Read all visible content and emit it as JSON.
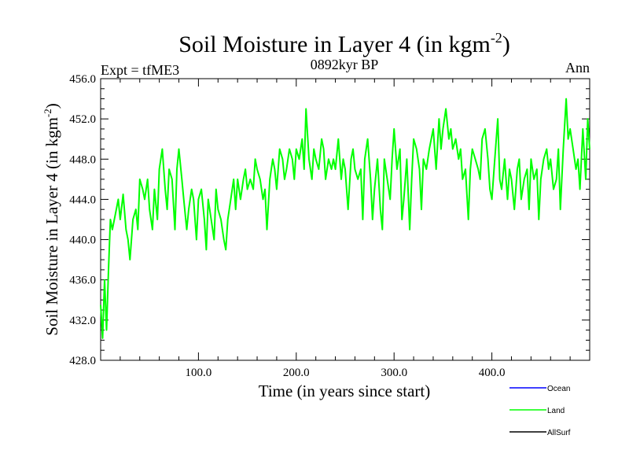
{
  "chart_data": {
    "type": "line",
    "title_main": "Soil Moisture in Layer 4 (in kgm",
    "title_sup": "-2",
    "title_close": ")",
    "subtitle": "0892kyr BP",
    "left_label": "Expt = tfME3",
    "right_label": "Ann",
    "xlabel": "Time (in years since start)",
    "ylabel_main": "Soil Moisture in Layer 4 (in kgm",
    "ylabel_sup": "-2",
    "ylabel_close": ")",
    "xlim": [
      0,
      500
    ],
    "ylim": [
      428,
      456
    ],
    "x_ticks": [
      100,
      200,
      300,
      400
    ],
    "x_tick_labels": [
      "100.0",
      "200.0",
      "300.0",
      "400.0"
    ],
    "y_ticks": [
      428,
      432,
      436,
      440,
      444,
      448,
      452,
      456
    ],
    "y_tick_labels": [
      "428.0",
      "432.0",
      "436.0",
      "440.0",
      "444.0",
      "448.0",
      "452.0",
      "456.0"
    ],
    "legend": [
      {
        "name": "Ocean",
        "color": "#0000ff"
      },
      {
        "name": "Land",
        "color": "#00ff00"
      },
      {
        "name": "AllSurf",
        "color": "#000000"
      }
    ],
    "series": [
      {
        "name": "Land",
        "color": "#00ff00",
        "x": [
          0,
          2,
          4,
          6,
          8,
          10,
          12,
          15,
          18,
          20,
          23,
          26,
          28,
          30,
          33,
          36,
          38,
          40,
          43,
          45,
          48,
          50,
          53,
          55,
          58,
          60,
          63,
          66,
          68,
          70,
          73,
          76,
          78,
          80,
          83,
          85,
          88,
          90,
          93,
          95,
          98,
          100,
          103,
          106,
          108,
          110,
          113,
          116,
          118,
          120,
          123,
          126,
          128,
          130,
          133,
          136,
          138,
          140,
          143,
          146,
          148,
          150,
          153,
          156,
          158,
          160,
          163,
          166,
          168,
          170,
          173,
          176,
          178,
          180,
          183,
          186,
          188,
          190,
          193,
          196,
          198,
          200,
          203,
          206,
          208,
          210,
          213,
          216,
          218,
          220,
          223,
          226,
          228,
          230,
          233,
          236,
          238,
          240,
          243,
          246,
          248,
          250,
          253,
          256,
          258,
          260,
          263,
          266,
          268,
          270,
          273,
          276,
          278,
          280,
          283,
          286,
          288,
          290,
          293,
          296,
          298,
          300,
          303,
          306,
          308,
          310,
          313,
          316,
          318,
          320,
          323,
          326,
          328,
          330,
          333,
          336,
          338,
          340,
          343,
          346,
          348,
          350,
          353,
          356,
          358,
          360,
          363,
          366,
          368,
          370,
          373,
          376,
          378,
          380,
          383,
          386,
          388,
          390,
          393,
          396,
          398,
          400,
          403,
          406,
          408,
          410,
          413,
          416,
          418,
          420,
          423,
          426,
          428,
          430,
          433,
          436,
          438,
          440,
          443,
          446,
          448,
          450,
          453,
          456,
          458,
          460,
          463,
          466,
          468,
          470,
          473,
          476,
          478,
          480,
          483,
          486,
          488,
          490,
          493,
          496,
          498,
          500
        ],
        "y": [
          433.5,
          430.2,
          436,
          431,
          437,
          442,
          441,
          442.5,
          444,
          442,
          444.5,
          441,
          440,
          438,
          442,
          443,
          441,
          446,
          445,
          444,
          446,
          443,
          441,
          445,
          442,
          447,
          449,
          445,
          443,
          447,
          446,
          441,
          447,
          449,
          446,
          444,
          441,
          443,
          445,
          444,
          440,
          444,
          445,
          442,
          439,
          444,
          442,
          440,
          445,
          443,
          442,
          440,
          439,
          442,
          444,
          446,
          443,
          446,
          444,
          446,
          447,
          445,
          446,
          445,
          448,
          447,
          446,
          444,
          445,
          441,
          446,
          448,
          447,
          445,
          449,
          448,
          446,
          447,
          449,
          448,
          446,
          449,
          448,
          450,
          447,
          453,
          448,
          446,
          449,
          448,
          447,
          450,
          449,
          446,
          448,
          447,
          448,
          447,
          450,
          446,
          448,
          447,
          443,
          448,
          449,
          447,
          446,
          447,
          442,
          448,
          450,
          446,
          442,
          445,
          448,
          443,
          441,
          448,
          446,
          444,
          448,
          451,
          447,
          449,
          442,
          444,
          448,
          441,
          446,
          450,
          449,
          447,
          443,
          448,
          447,
          449,
          450,
          451,
          447,
          452,
          449,
          451,
          453,
          450,
          451,
          449,
          450,
          448,
          449,
          446,
          447,
          442,
          447,
          449,
          448,
          447,
          446,
          450,
          451,
          448,
          445,
          444,
          448,
          452,
          446,
          445,
          448,
          444,
          447,
          446,
          443,
          447,
          448,
          444,
          446,
          447,
          443,
          448,
          446,
          447,
          442,
          446,
          448,
          449,
          447,
          448,
          445,
          446,
          449,
          443,
          449,
          454,
          450,
          451,
          449,
          447,
          448,
          445,
          451,
          446,
          452,
          449
        ]
      }
    ]
  }
}
